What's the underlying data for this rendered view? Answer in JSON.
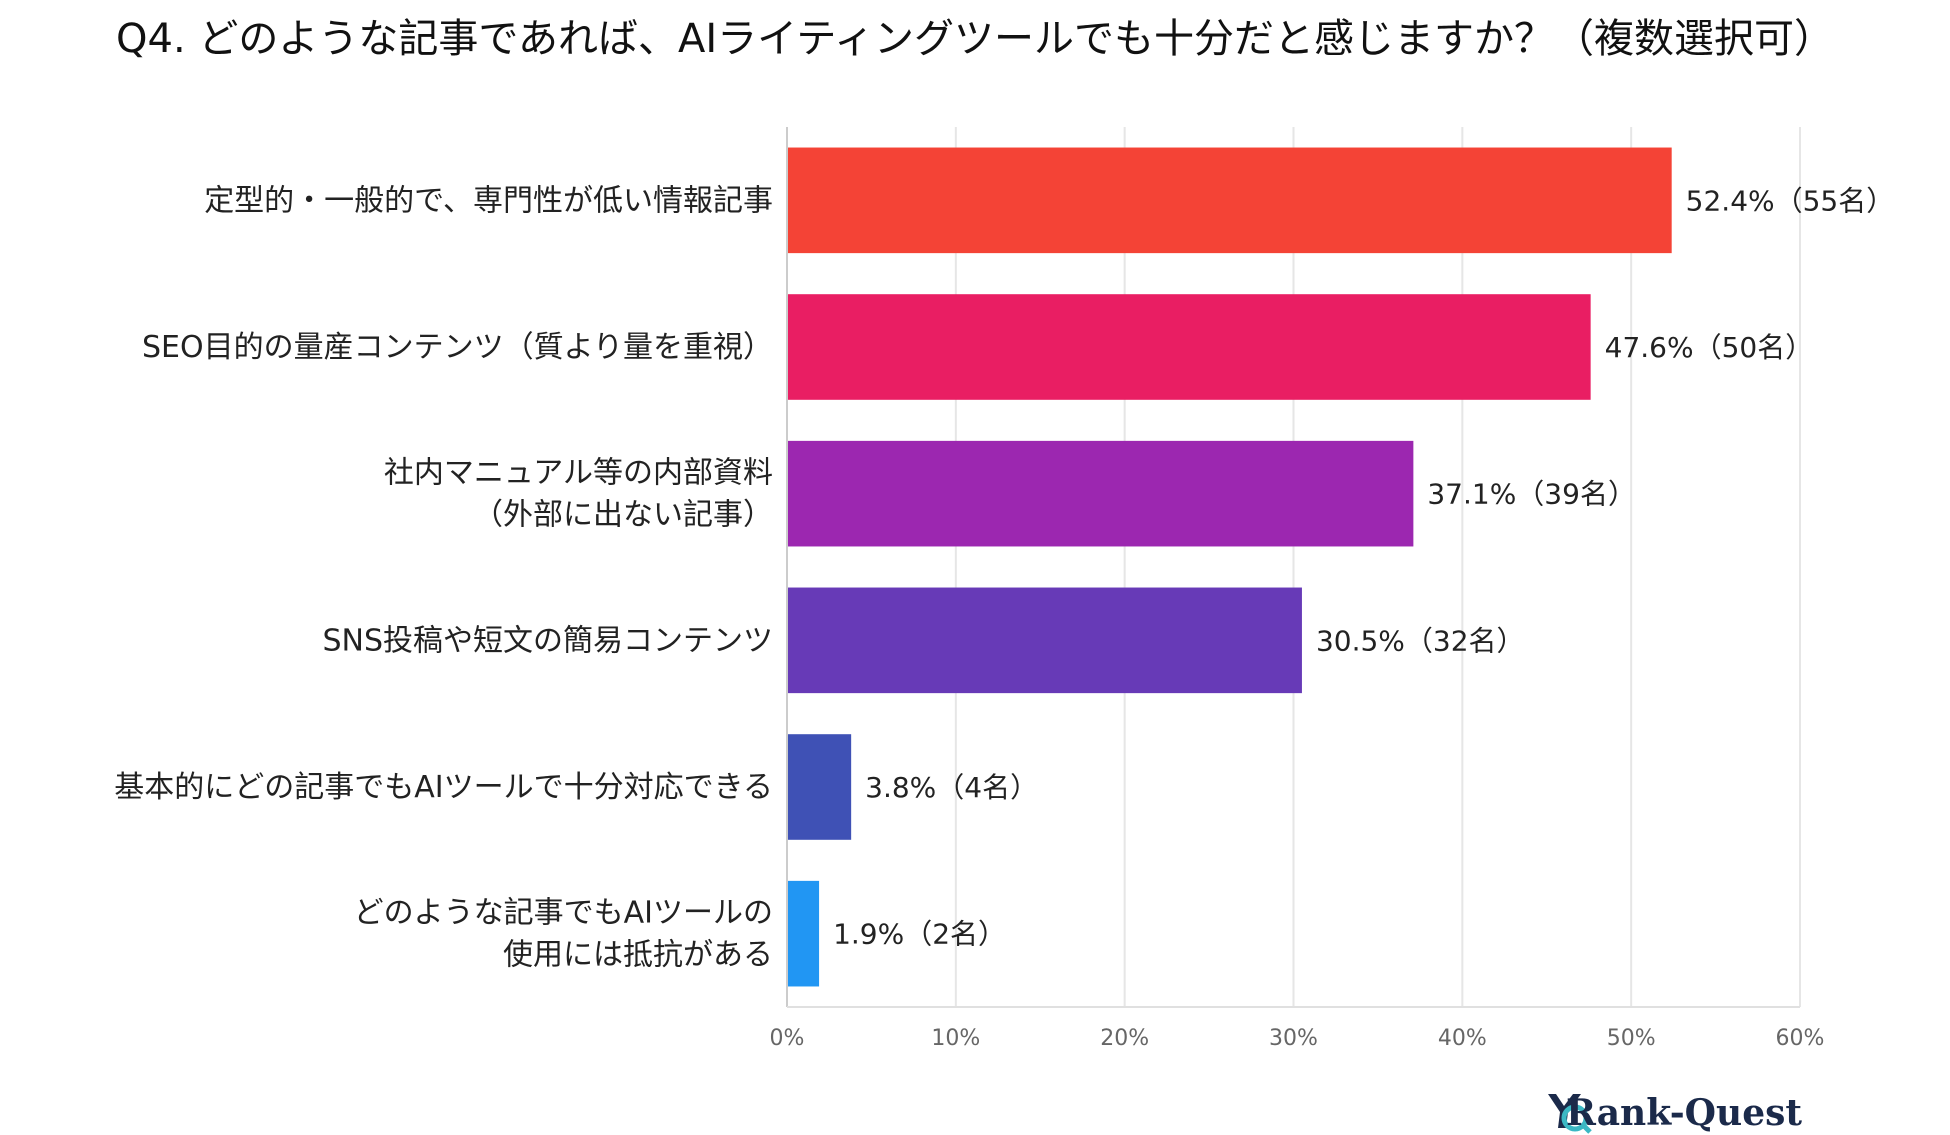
{
  "chart_data": {
    "type": "bar",
    "orientation": "horizontal",
    "title": "Q4. どのような記事であれば、AIライティングツールでも十分だと感じますか？（複数選択可）",
    "categories": [
      [
        "定型的・一般的で、専門性が低い情報記事"
      ],
      [
        "SEO目的の量産コンテンツ（質より量を重視）"
      ],
      [
        "社内マニュアル等の内部資料",
        "（外部に出ない記事）"
      ],
      [
        "SNS投稿や短文の簡易コンテンツ"
      ],
      [
        "基本的にどの記事でもAIツールで十分対応できる"
      ],
      [
        "どのような記事でもAIツールの",
        "使用には抵抗がある"
      ]
    ],
    "values": [
      52.4,
      47.6,
      37.1,
      30.5,
      3.8,
      1.9
    ],
    "value_labels": [
      "52.4%（55名）",
      "47.6%（50名）",
      "37.1%（39名）",
      "30.5%（32名）",
      "3.8%（4名）",
      "1.9%（2名）"
    ],
    "colors": [
      "#f44336",
      "#e91e63",
      "#9c27b0",
      "#673ab7",
      "#3f51b5",
      "#2196f3"
    ],
    "xlim": [
      0,
      60
    ],
    "ticks": [
      0,
      10,
      20,
      30,
      40,
      50,
      60
    ],
    "tick_labels": [
      "0%",
      "10%",
      "20%",
      "30%",
      "40%",
      "50%",
      "60%"
    ],
    "xlabel": "",
    "ylabel": "",
    "grid": true,
    "legend": "none"
  },
  "brand": {
    "name": "Rank-Quest",
    "accent": "#3bb8c4",
    "dark": "#1b2a4a"
  }
}
